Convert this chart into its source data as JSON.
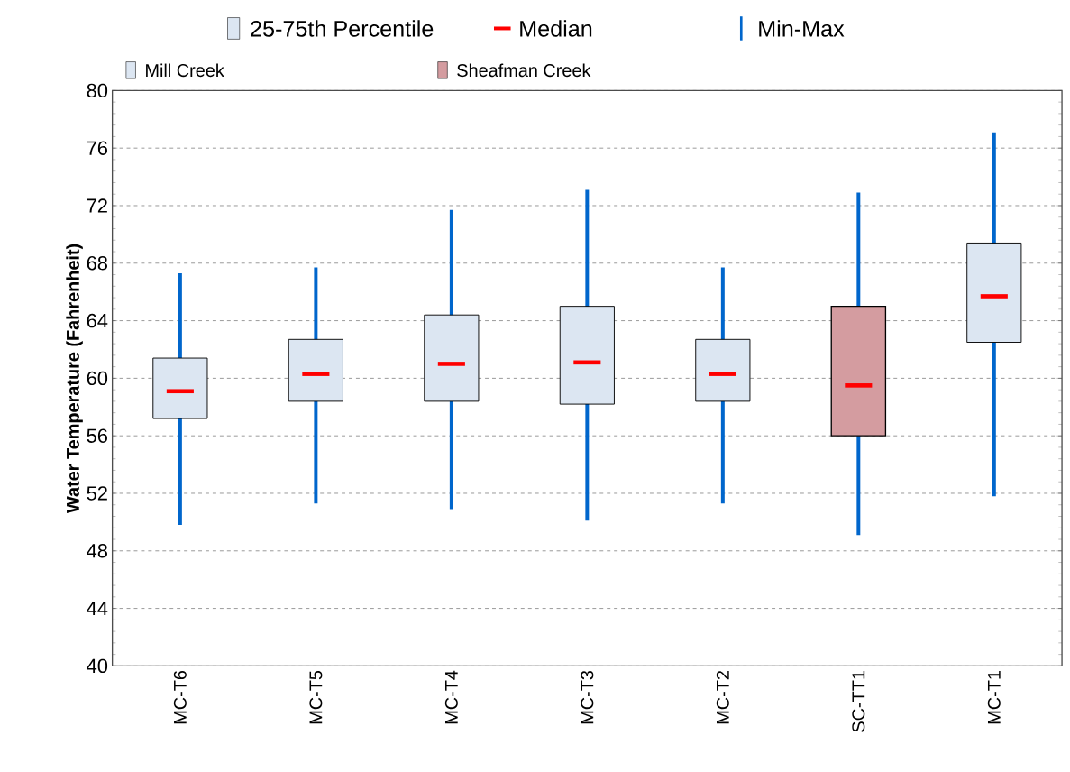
{
  "chart_data": {
    "type": "box",
    "ylabel": "Water Temperature (Fahrenheit)",
    "categories": [
      "MC-T6",
      "MC-T5",
      "MC-T4",
      "MC-T3",
      "MC-T2",
      "SC-TT1",
      "MC-T1"
    ],
    "ylim": [
      40,
      80
    ],
    "yticks": [
      40,
      44,
      48,
      52,
      56,
      60,
      64,
      68,
      72,
      76,
      80
    ],
    "grid": "y",
    "legend": "top",
    "annotations": [
      "25-75th Percentile",
      "Median",
      "Min-Max"
    ],
    "series": [
      {
        "name": "Mill Creek",
        "color": "#dce6f2",
        "boxes": [
          {
            "low": 49.8,
            "q1": 57.2,
            "median": 59.1,
            "q3": 61.4,
            "high": 67.3
          },
          {
            "low": 51.3,
            "q1": 58.4,
            "median": 60.3,
            "q3": 62.7,
            "high": 67.7
          },
          {
            "low": 50.9,
            "q1": 58.4,
            "median": 61.0,
            "q3": 64.4,
            "high": 71.7
          },
          {
            "low": 50.1,
            "q1": 58.2,
            "median": 61.1,
            "q3": 65.0,
            "high": 73.1
          },
          {
            "low": 51.3,
            "q1": 58.4,
            "median": 60.3,
            "q3": 62.7,
            "high": 67.7
          },
          null,
          {
            "low": 51.8,
            "q1": 62.5,
            "median": 65.7,
            "q3": 69.4,
            "high": 77.1
          }
        ]
      },
      {
        "name": "Sheafman Creek",
        "color": "#d49ca0",
        "boxes": [
          null,
          null,
          null,
          null,
          null,
          {
            "low": 49.1,
            "q1": 56.0,
            "median": 59.5,
            "q3": 65.0,
            "high": 72.9
          },
          null
        ]
      }
    ]
  }
}
